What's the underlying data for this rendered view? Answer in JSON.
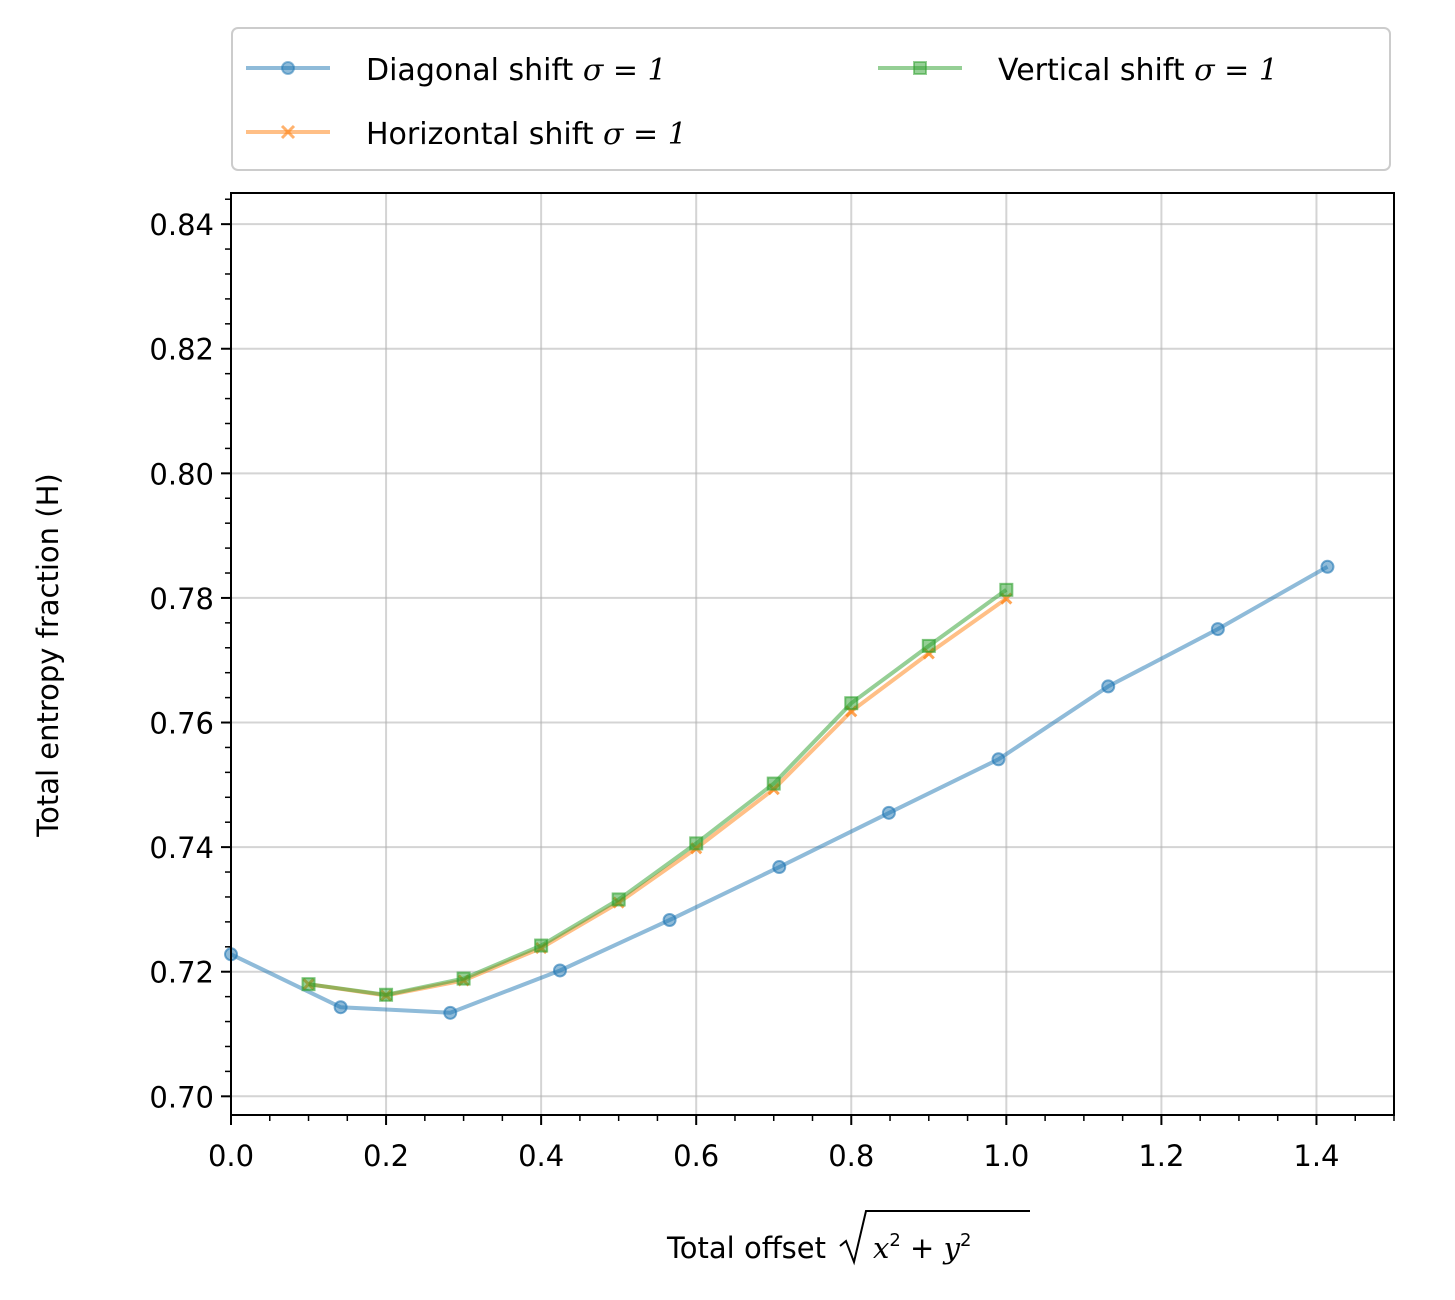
{
  "chart_data": {
    "type": "line",
    "xlabel": "Total offset",
    "xlabel_math": "√(x² + y²)",
    "ylabel": "Total entropy fraction (H)",
    "xlim": [
      0.0,
      1.5
    ],
    "ylim": [
      0.697,
      0.845
    ],
    "xticks": [
      "0.0",
      "0.2",
      "0.4",
      "0.6",
      "0.8",
      "1.0",
      "1.2",
      "1.4"
    ],
    "yticks": [
      "0.70",
      "0.72",
      "0.74",
      "0.76",
      "0.78",
      "0.80",
      "0.82",
      "0.84"
    ],
    "grid": true,
    "legend_position": "top, above plot, two columns",
    "series": [
      {
        "name": "Diagonal shift σ = 1",
        "color": "#1f77b4",
        "marker": "circle",
        "x": [
          0.0,
          0.1414,
          0.2828,
          0.4243,
          0.5657,
          0.7071,
          0.8485,
          0.9899,
          1.1314,
          1.2728,
          1.4142
        ],
        "y": [
          0.7228,
          0.7143,
          0.7134,
          0.7202,
          0.7283,
          0.7368,
          0.7455,
          0.7541,
          0.7658,
          0.775,
          0.785
        ]
      },
      {
        "name": "Horizontal shift σ = 1",
        "color": "#ff7f0e",
        "marker": "x",
        "x": [
          0.1,
          0.2,
          0.3,
          0.4,
          0.5,
          0.6,
          0.7,
          0.8,
          0.9,
          1.0
        ],
        "y": [
          0.718,
          0.7162,
          0.7186,
          0.7238,
          0.7311,
          0.7398,
          0.7493,
          0.7618,
          0.7711,
          0.7799
        ]
      },
      {
        "name": "Vertical shift σ = 1",
        "color": "#2ca02c",
        "marker": "square",
        "x": [
          0.1,
          0.2,
          0.3,
          0.4,
          0.5,
          0.6,
          0.7,
          0.8,
          0.9,
          1.0
        ],
        "y": [
          0.718,
          0.7163,
          0.7189,
          0.7242,
          0.7316,
          0.7406,
          0.7502,
          0.7631,
          0.7723,
          0.7813
        ]
      }
    ]
  },
  "legend": {
    "diagonal": "Diagonal shift",
    "horizontal": "Horizontal shift",
    "vertical": "Vertical shift",
    "sigma_text": "σ = 1"
  }
}
